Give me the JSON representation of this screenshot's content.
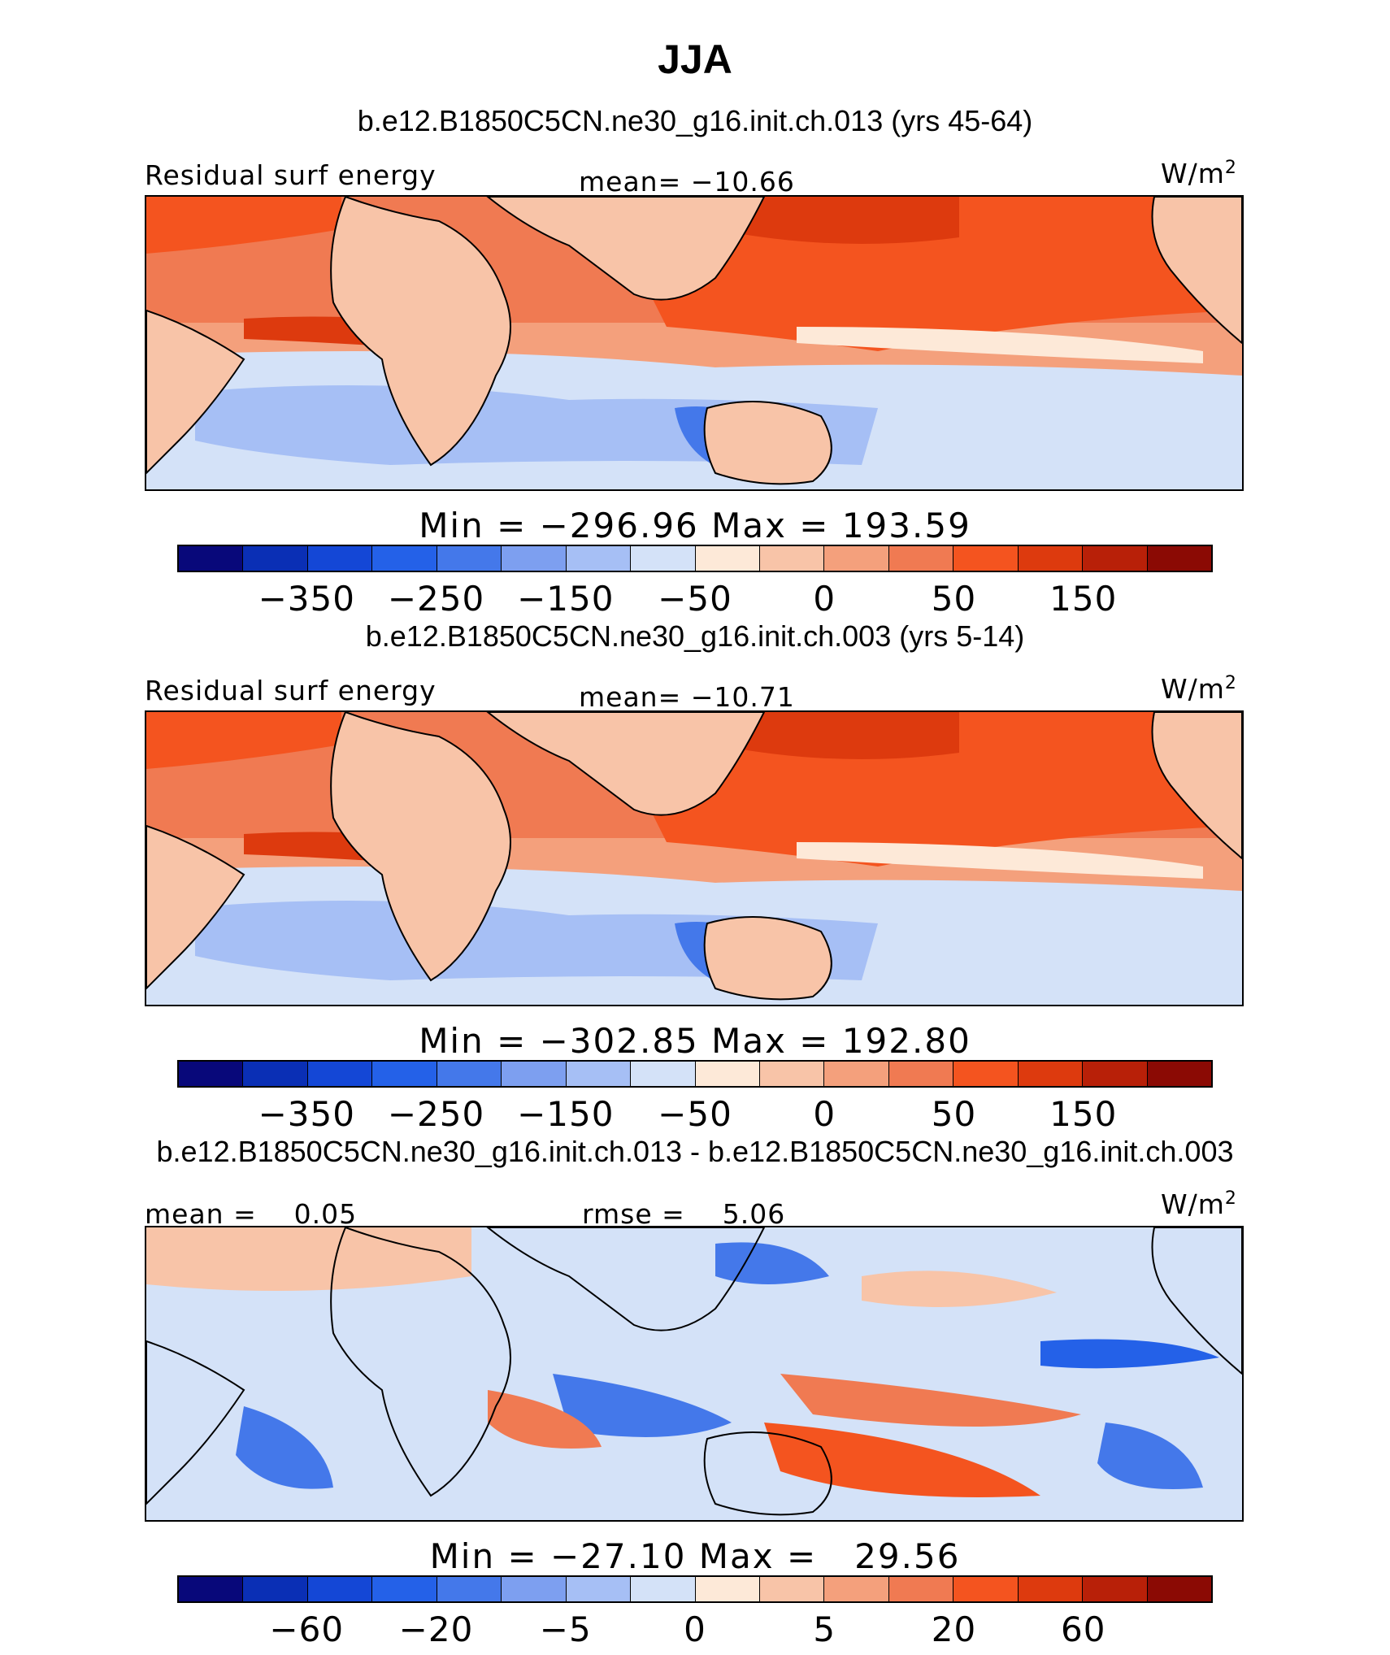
{
  "page_title": "JJA",
  "palette": [
    "#08087a",
    "#0a2fb5",
    "#1447d6",
    "#2461e8",
    "#4478ea",
    "#7d9ff0",
    "#a6bff5",
    "#d4e2f8",
    "#fde9d8",
    "#f8c4a8",
    "#f4a07c",
    "#f07a52",
    "#f4541f",
    "#dd3a0e",
    "#b82008",
    "#8b0a04"
  ],
  "chart_data": [
    {
      "type": "heatmap",
      "title": "b.e12.B1850C5CN.ne30_g16.init.ch.013 (yrs 45-64)",
      "left_label": "Residual surf energy",
      "center_label": "mean= −10.66",
      "units_base": "W/m",
      "units_exp": "2",
      "min_max": "Min = −296.96 Max = 193.59",
      "colorbar_ticks": [
        "−350",
        "−250",
        "−150",
        "−50",
        "0",
        "50",
        "150"
      ],
      "colorbar_tick_boundaries": [
        2,
        4,
        6,
        8,
        10,
        12,
        14
      ]
    },
    {
      "type": "heatmap",
      "title": "b.e12.B1850C5CN.ne30_g16.init.ch.003 (yrs 5-14)",
      "left_label": "Residual surf energy",
      "center_label": "mean= −10.71",
      "units_base": "W/m",
      "units_exp": "2",
      "min_max": "Min = −302.85 Max = 192.80",
      "colorbar_ticks": [
        "−350",
        "−250",
        "−150",
        "−50",
        "0",
        "50",
        "150"
      ],
      "colorbar_tick_boundaries": [
        2,
        4,
        6,
        8,
        10,
        12,
        14
      ]
    },
    {
      "type": "heatmap",
      "title": "b.e12.B1850C5CN.ne30_g16.init.ch.013 - b.e12.B1850C5CN.ne30_g16.init.ch.003",
      "left_label": "mean =    0.05",
      "center_label": "rmse =    5.06",
      "units_base": "W/m",
      "units_exp": "2",
      "min_max": "Min = −27.10 Max =   29.56",
      "colorbar_ticks": [
        "−60",
        "−20",
        "−5",
        "0",
        "5",
        "20",
        "60"
      ],
      "colorbar_tick_boundaries": [
        2,
        4,
        6,
        8,
        10,
        12,
        14
      ]
    }
  ]
}
